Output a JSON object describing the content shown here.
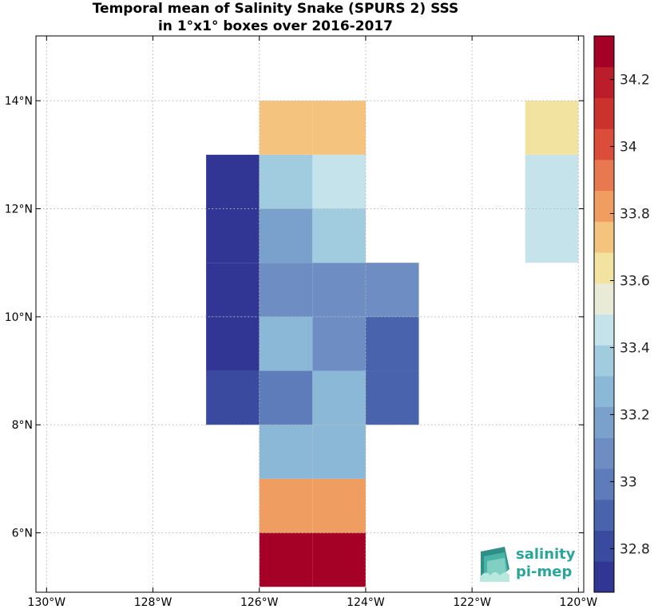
{
  "chart_data": {
    "type": "heatmap",
    "title": [
      "Temporal mean of Salinity Snake (SPURS 2) SSS",
      "in 1°x1° boxes over 2016-2017"
    ],
    "x_ticks": [
      {
        "value": -130,
        "label": "130°W"
      },
      {
        "value": -128,
        "label": "128°W"
      },
      {
        "value": -126,
        "label": "126°W"
      },
      {
        "value": -124,
        "label": "124°W"
      },
      {
        "value": -122,
        "label": "122°W"
      },
      {
        "value": -120,
        "label": "120°W"
      }
    ],
    "y_ticks": [
      {
        "value": 6,
        "label": "6°N"
      },
      {
        "value": 8,
        "label": "8°N"
      },
      {
        "value": 10,
        "label": "10°N"
      },
      {
        "value": 12,
        "label": "12°N"
      },
      {
        "value": 14,
        "label": "14°N"
      }
    ],
    "xlim": [
      -130.2,
      -119.9
    ],
    "ylim": [
      4.9,
      15.2
    ],
    "grid": true,
    "colorbar": {
      "range": [
        32.67,
        34.33
      ],
      "ticks": [
        32.8,
        33.0,
        33.2,
        33.4,
        33.6,
        33.8,
        34.0,
        34.2
      ],
      "tick_labels": [
        "32.8",
        "33",
        "33.2",
        "33.4",
        "33.6",
        "33.8",
        "34",
        "34.2"
      ],
      "colors": [
        "#313695",
        "#3a4b9f",
        "#4964ad",
        "#5d7cb9",
        "#6d8dc3",
        "#7aa1cb",
        "#8ab8d6",
        "#a1cce0",
        "#c5e3ea",
        "#e9ebd6",
        "#f2e3a0",
        "#f4c47e",
        "#f09d62",
        "#e77850",
        "#da4d3a",
        "#cb312d",
        "#bc1d2a",
        "#a50026"
      ]
    },
    "cells": [
      {
        "lon": -126,
        "lat": 5,
        "sss": 34.33
      },
      {
        "lon": -125,
        "lat": 5,
        "sss": 34.33
      },
      {
        "lon": -126,
        "lat": 6,
        "sss": 33.82
      },
      {
        "lon": -125,
        "lat": 6,
        "sss": 33.82
      },
      {
        "lon": -126,
        "lat": 7,
        "sss": 33.25
      },
      {
        "lon": -125,
        "lat": 7,
        "sss": 33.25
      },
      {
        "lon": -127,
        "lat": 8,
        "sss": 32.82
      },
      {
        "lon": -126,
        "lat": 8,
        "sss": 33.02
      },
      {
        "lon": -125,
        "lat": 8,
        "sss": 33.25
      },
      {
        "lon": -124,
        "lat": 8,
        "sss": 32.92
      },
      {
        "lon": -127,
        "lat": 9,
        "sss": 32.72
      },
      {
        "lon": -126,
        "lat": 9,
        "sss": 33.25
      },
      {
        "lon": -125,
        "lat": 9,
        "sss": 33.05
      },
      {
        "lon": -124,
        "lat": 9,
        "sss": 32.92
      },
      {
        "lon": -127,
        "lat": 10,
        "sss": 32.72
      },
      {
        "lon": -126,
        "lat": 10,
        "sss": 33.12
      },
      {
        "lon": -125,
        "lat": 10,
        "sss": 33.12
      },
      {
        "lon": -124,
        "lat": 10,
        "sss": 33.05
      },
      {
        "lon": -127,
        "lat": 11,
        "sss": 32.72
      },
      {
        "lon": -126,
        "lat": 11,
        "sss": 33.22
      },
      {
        "lon": -125,
        "lat": 11,
        "sss": 33.32
      },
      {
        "lon": -127,
        "lat": 12,
        "sss": 32.72
      },
      {
        "lon": -126,
        "lat": 12,
        "sss": 33.32
      },
      {
        "lon": -125,
        "lat": 12,
        "sss": 33.42
      },
      {
        "lon": -121,
        "lat": 11,
        "sss": 33.42
      },
      {
        "lon": -121,
        "lat": 12,
        "sss": 33.42
      },
      {
        "lon": -126,
        "lat": 13,
        "sss": 33.72
      },
      {
        "lon": -125,
        "lat": 13,
        "sss": 33.72
      },
      {
        "lon": -121,
        "lat": 13,
        "sss": 33.62
      }
    ]
  },
  "logo": {
    "line1": "salinity",
    "line2": "pi-mep"
  }
}
